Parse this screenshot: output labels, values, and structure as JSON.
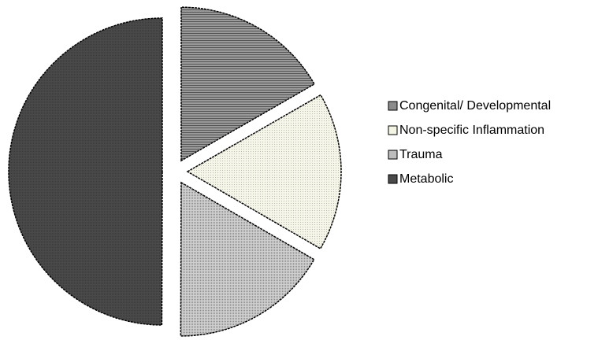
{
  "chart_data": {
    "type": "pie",
    "categories": [
      "Congenital/ Developmental",
      "Non-specific Inflammation",
      "Trauma",
      "Metabolic"
    ],
    "values": [
      16.7,
      16.7,
      16.7,
      50
    ],
    "colors": [
      "#8c8c8c",
      "#f4f4e4",
      "#bdbdbd",
      "#4a4a4a"
    ],
    "legend": "right"
  }
}
